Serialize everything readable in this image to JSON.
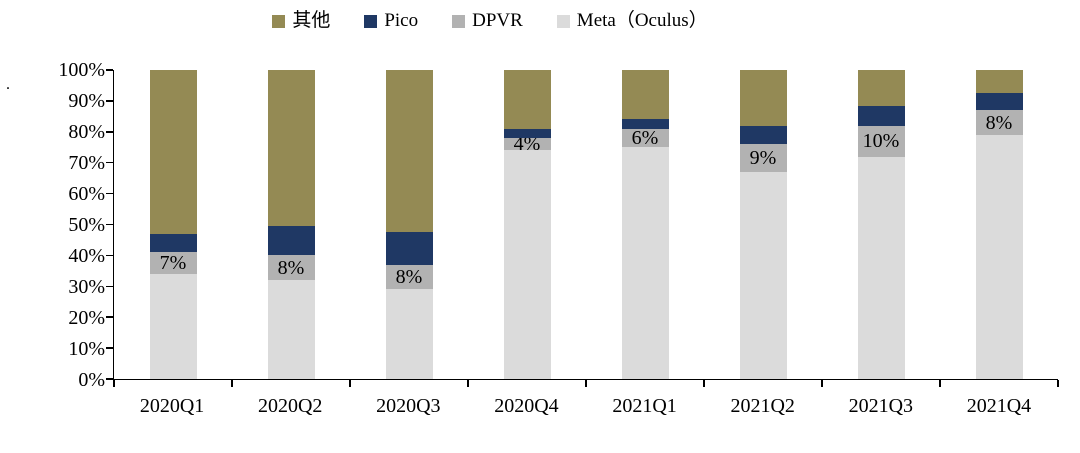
{
  "chart_data": {
    "type": "bar",
    "stacked": true,
    "percent_stacked": true,
    "title": "",
    "xlabel": "",
    "ylabel": "",
    "ylim": [
      0,
      100
    ],
    "grid": false,
    "legend_position": "top",
    "categories": [
      "2020Q1",
      "2020Q2",
      "2020Q3",
      "2020Q4",
      "2021Q1",
      "2021Q2",
      "2021Q3",
      "2021Q4"
    ],
    "y_ticks": [
      "100%",
      "90%",
      "80%",
      "70%",
      "60%",
      "50%",
      "40%",
      "30%",
      "20%",
      "10%",
      "0%"
    ],
    "stack_order_bottom_to_top": [
      "meta",
      "dpvr",
      "pico",
      "other"
    ],
    "series": [
      {
        "id": "other",
        "name": "其他",
        "color": "#948A54",
        "values": [
          53,
          50.5,
          52.5,
          19,
          16,
          18,
          11.5,
          7.5
        ]
      },
      {
        "id": "pico",
        "name": "Pico",
        "color": "#1F3864",
        "values": [
          6,
          9.5,
          10.5,
          3,
          3,
          6,
          6.5,
          5.5
        ]
      },
      {
        "id": "dpvr",
        "name": "DPVR",
        "color": "#B2B2B2",
        "values": [
          7,
          8,
          8,
          4,
          6,
          9,
          10,
          8
        ],
        "data_labels": [
          "7%",
          "8%",
          "8%",
          "4%",
          "6%",
          "9%",
          "10%",
          "8%"
        ]
      },
      {
        "id": "meta",
        "name": "Meta（Oculus）",
        "color": "#DBDBDB",
        "values": [
          34,
          32,
          29,
          74,
          75,
          67,
          72,
          79
        ]
      }
    ]
  },
  "misc": {
    "stray_mark": "."
  }
}
